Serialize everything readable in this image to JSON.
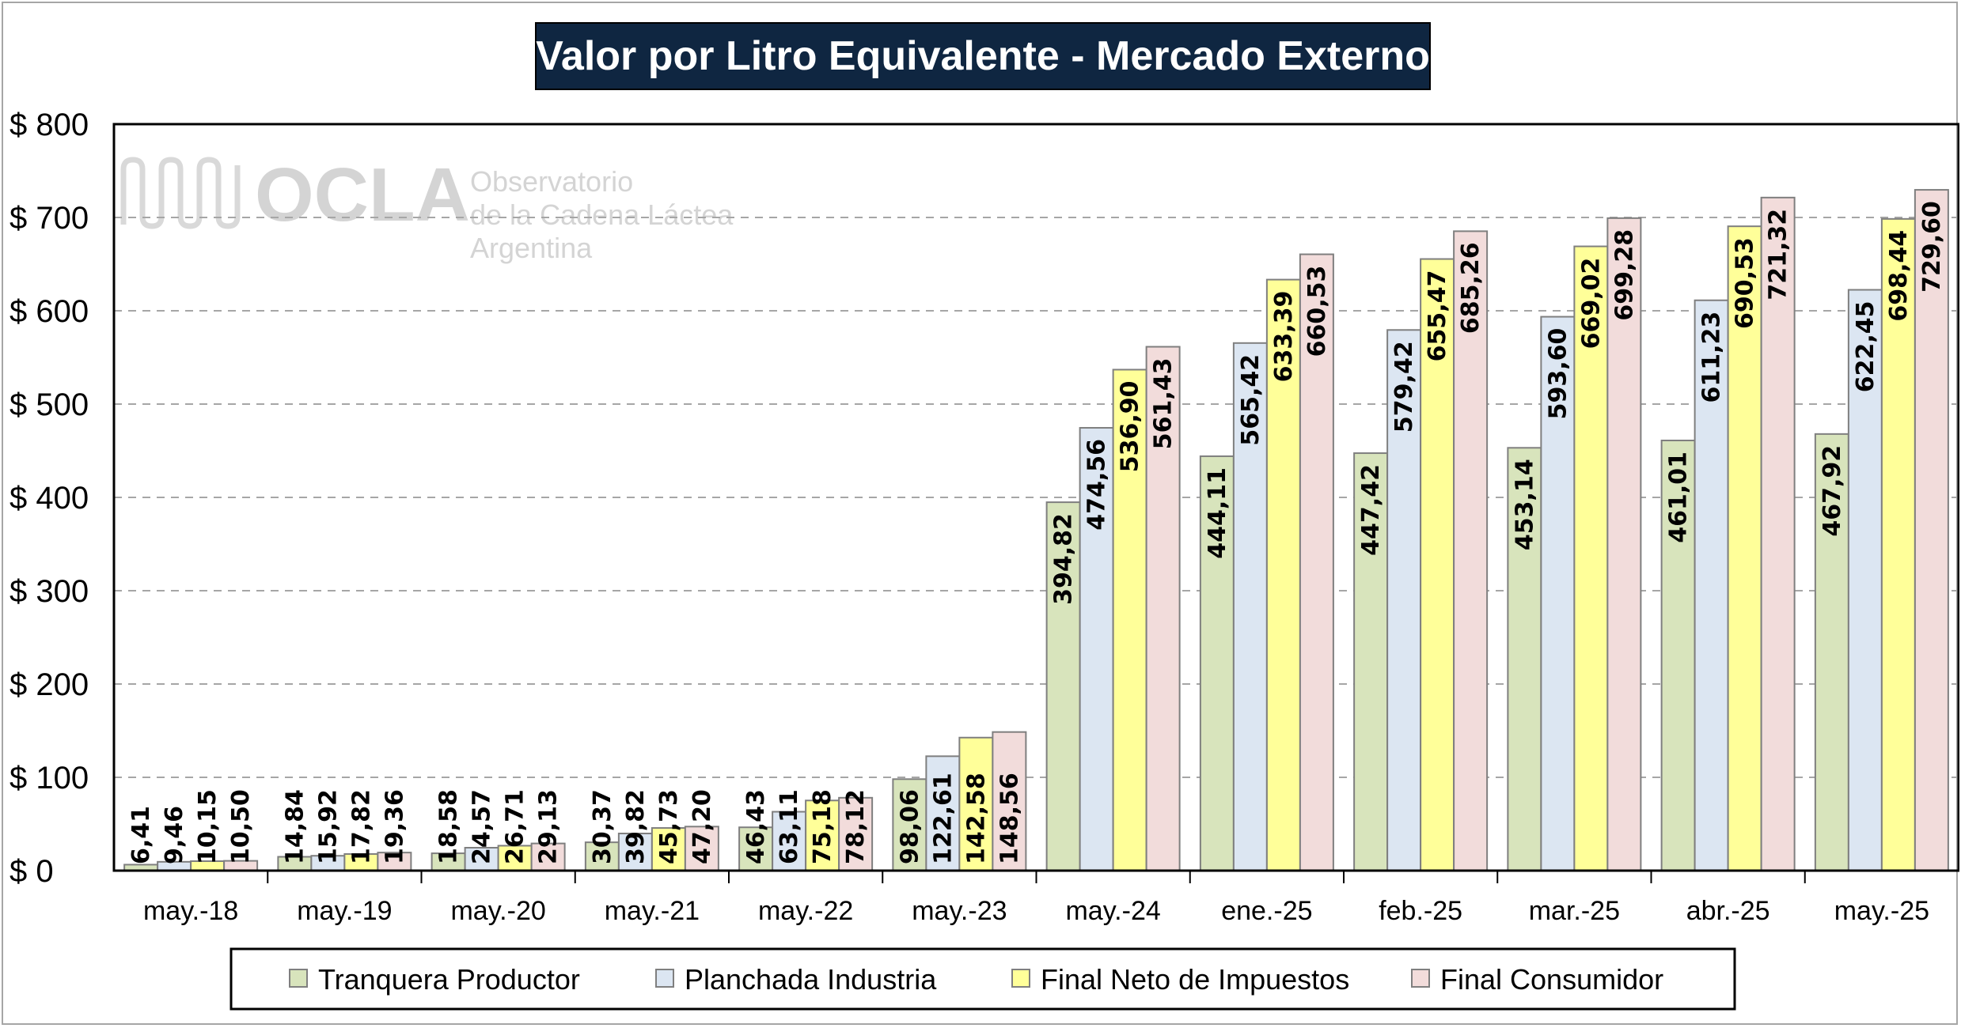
{
  "chart_data": {
    "type": "bar",
    "title": "Valor por Litro Equivalente - Mercado Externo",
    "categories": [
      "may.-18",
      "may.-19",
      "may.-20",
      "may.-21",
      "may.-22",
      "may.-23",
      "may.-24",
      "ene.-25",
      "feb.-25",
      "mar.-25",
      "abr.-25",
      "may.-25"
    ],
    "y_tick_labels": [
      "$ 0",
      "$ 100",
      "$ 200",
      "$ 300",
      "$ 400",
      "$ 500",
      "$ 600",
      "$ 700",
      "$ 800"
    ],
    "ylim": [
      0,
      800
    ],
    "y_tick_step": 100,
    "grid": "horizontal dashed",
    "legend_position": "bottom",
    "series": [
      {
        "name": "Tranquera Productor",
        "color": "#d8e4bc",
        "values": [
          6.41,
          14.84,
          18.58,
          30.37,
          46.43,
          98.06,
          394.82,
          444.11,
          447.42,
          453.14,
          461.01,
          467.92
        ],
        "labels": [
          "6,41",
          "14,84",
          "18,58",
          "30,37",
          "46,43",
          "98,06",
          "394,82",
          "444,11",
          "447,42",
          "453,14",
          "461,01",
          "467,92"
        ]
      },
      {
        "name": "Planchada Industria",
        "color": "#dce6f2",
        "values": [
          9.46,
          15.92,
          24.57,
          39.82,
          63.11,
          122.61,
          474.56,
          565.42,
          579.42,
          593.6,
          611.23,
          622.45
        ],
        "labels": [
          "9,46",
          "15,92",
          "24,57",
          "39,82",
          "63,11",
          "122,61",
          "474,56",
          "565,42",
          "579,42",
          "593,60",
          "611,23",
          "622,45"
        ]
      },
      {
        "name": "Final Neto de Impuestos",
        "color": "#ffff99",
        "values": [
          10.15,
          17.82,
          26.71,
          45.73,
          75.18,
          142.58,
          536.9,
          633.39,
          655.47,
          669.02,
          690.53,
          698.44
        ],
        "labels": [
          "10,15",
          "17,82",
          "26,71",
          "45,73",
          "75,18",
          "142,58",
          "536,90",
          "633,39",
          "655,47",
          "669,02",
          "690,53",
          "698,44"
        ]
      },
      {
        "name": "Final Consumidor",
        "color": "#f2dcdb",
        "values": [
          10.5,
          19.36,
          29.13,
          47.2,
          78.12,
          148.56,
          561.43,
          660.53,
          685.26,
          699.28,
          721.32,
          729.6
        ],
        "labels": [
          "10,50",
          "19,36",
          "29,13",
          "47,20",
          "78,12",
          "148,56",
          "561,43",
          "660,53",
          "685,26",
          "699,28",
          "721,32",
          "729,60"
        ]
      }
    ]
  },
  "watermark": {
    "brand": "OCLA",
    "line1": "Observatorio",
    "line2": "de la Cadena Láctea",
    "line3": "Argentina"
  },
  "colors": {
    "title_bg": "#0f2641",
    "bar_stroke": "#7f7f7f",
    "grid": "#a6a6a6"
  }
}
